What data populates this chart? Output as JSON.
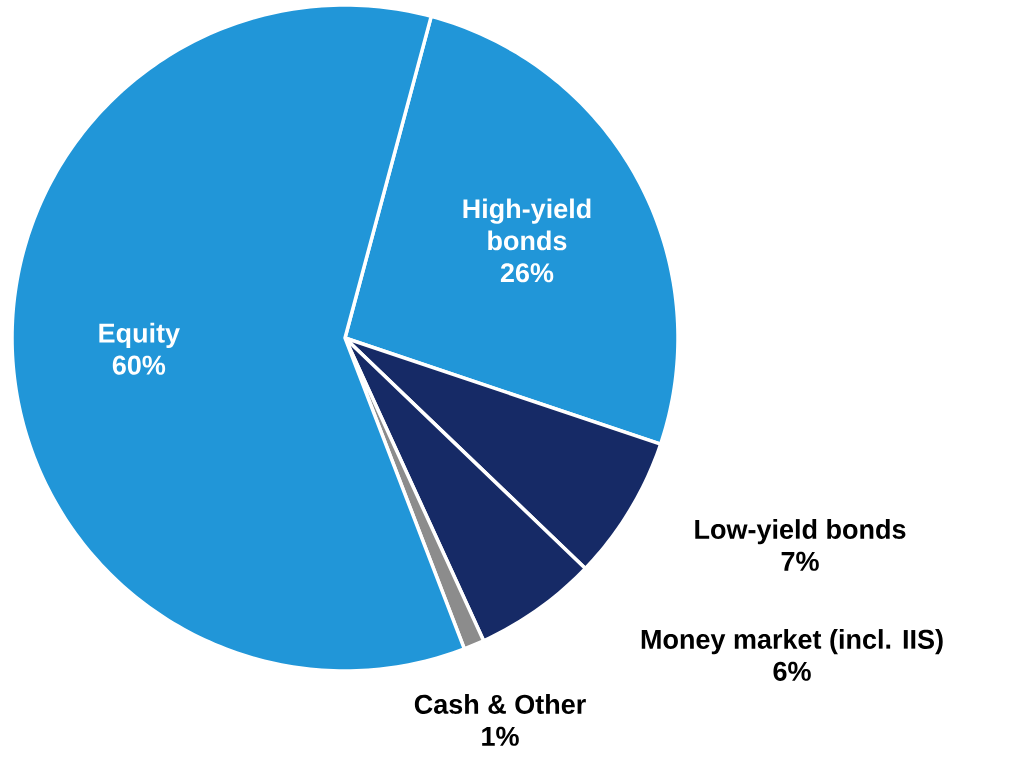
{
  "chart_data": {
    "type": "pie",
    "categories": [
      "High-yield bonds",
      "Low-yield bonds",
      "Money market (incl. IIS)",
      "Cash & Other",
      "Equity"
    ],
    "values": [
      26,
      7,
      6,
      1,
      60
    ],
    "value_labels": [
      "26%",
      "7%",
      "6%",
      "1%",
      "60%"
    ],
    "colors": [
      "#2196d8",
      "#162a66",
      "#162a66",
      "#8c8c8c",
      "#2196d8"
    ]
  }
}
